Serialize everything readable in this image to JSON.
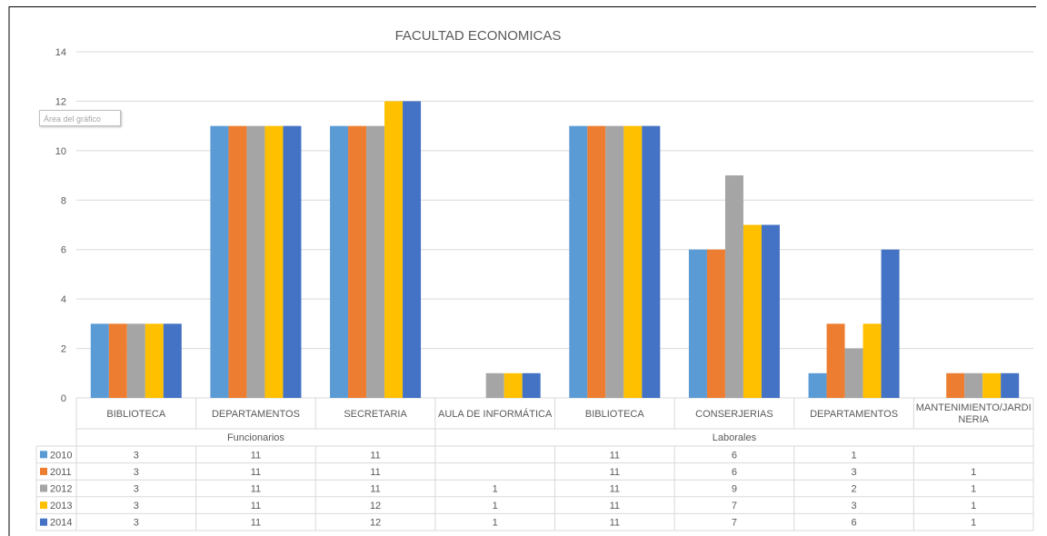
{
  "chart_data": {
    "type": "bar",
    "title": "FACULTAD ECONOMICAS",
    "tooltip": "Área del gráfico",
    "ylim": [
      0,
      14
    ],
    "yticks": [
      "0",
      "2",
      "4",
      "6",
      "8",
      "10",
      "12",
      "14"
    ],
    "grid": true,
    "legend": "data-table",
    "categories": [
      "BIBLIOTECA",
      "DEPARTAMENTOS",
      "SECRETARIA",
      "AULA DE INFORMÁTICA",
      "BIBLIOTECA",
      "CONSERJERIAS",
      "DEPARTAMENTOS",
      "MANTENIMIENTO/JARDINERIA"
    ],
    "category_display": [
      [
        "BIBLIOTECA"
      ],
      [
        "DEPARTAMENTOS"
      ],
      [
        "SECRETARIA"
      ],
      [
        "AULA DE INFORMÁTICA"
      ],
      [
        "BIBLIOTECA"
      ],
      [
        "CONSERJERIAS"
      ],
      [
        "DEPARTAMENTOS"
      ],
      [
        "MANTENIMIENTO/JARDI",
        "NERIA"
      ]
    ],
    "groups": [
      {
        "label": "Funcionarios",
        "span": 3
      },
      {
        "label": "Laborales",
        "span": 5
      }
    ],
    "series": [
      {
        "name": "2010",
        "color": "#5B9BD5",
        "values": [
          3,
          11,
          11,
          null,
          11,
          6,
          1,
          null
        ]
      },
      {
        "name": "2011",
        "color": "#ED7D31",
        "values": [
          3,
          11,
          11,
          null,
          11,
          6,
          3,
          1
        ]
      },
      {
        "name": "2012",
        "color": "#A5A5A5",
        "values": [
          3,
          11,
          11,
          1,
          11,
          9,
          2,
          1
        ]
      },
      {
        "name": "2013",
        "color": "#FFC000",
        "values": [
          3,
          11,
          12,
          1,
          11,
          7,
          3,
          1
        ]
      },
      {
        "name": "2014",
        "color": "#4472C4",
        "values": [
          3,
          11,
          12,
          1,
          11,
          7,
          6,
          1
        ]
      }
    ]
  }
}
